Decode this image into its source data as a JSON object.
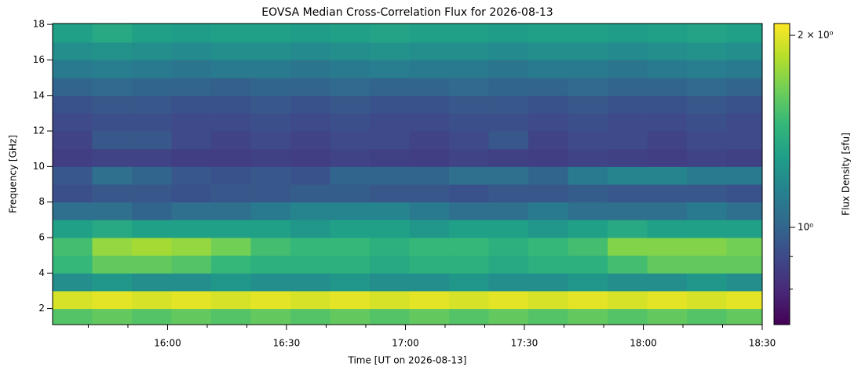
{
  "chart_data": {
    "type": "heatmap",
    "title": "EOVSA Median Cross-Correlation Flux for 2026-08-13",
    "xlabel": "Time [UT on 2026-08-13]",
    "ylabel": "Frequency [GHz]",
    "colormap": "viridis",
    "x": [
      "15:36",
      "15:46",
      "15:56",
      "16:06",
      "16:16",
      "16:26",
      "16:36",
      "16:46",
      "16:56",
      "17:06",
      "17:16",
      "17:26",
      "17:36",
      "17:46",
      "17:56",
      "18:06",
      "18:16",
      "18:26"
    ],
    "y": [
      1.5,
      2.5,
      3.5,
      4.5,
      5.5,
      6.5,
      7.5,
      8.5,
      9.5,
      10.5,
      11.5,
      12.5,
      13.5,
      14.5,
      15.5,
      16.5,
      17.5
    ],
    "xlim": [
      "15:31",
      "18:30"
    ],
    "xticks": [
      "16:00",
      "16:30",
      "17:00",
      "17:30",
      "18:00",
      "18:30"
    ],
    "xminorticks": [
      "15:40",
      "15:50",
      "16:10",
      "16:20",
      "16:40",
      "16:50",
      "17:10",
      "17:20",
      "17:40",
      "17:50",
      "18:10",
      "18:20"
    ],
    "ylim": [
      1.1,
      18.05
    ],
    "yticks": [
      2,
      4,
      6,
      8,
      10,
      12,
      14,
      16,
      18
    ],
    "values": [
      [
        1.55,
        1.6,
        1.55,
        1.6,
        1.55,
        1.6,
        1.55,
        1.6,
        1.55,
        1.6,
        1.55,
        1.6,
        1.55,
        1.6,
        1.55,
        1.6,
        1.55,
        1.6
      ],
      [
        1.95,
        2.0,
        1.95,
        2.0,
        1.95,
        2.0,
        1.95,
        2.0,
        1.95,
        2.0,
        1.95,
        2.0,
        1.95,
        2.0,
        1.95,
        2.0,
        1.95,
        2.0
      ],
      [
        1.2,
        1.25,
        1.2,
        1.2,
        1.25,
        1.2,
        1.2,
        1.25,
        1.2,
        1.2,
        1.25,
        1.2,
        1.2,
        1.25,
        1.2,
        1.2,
        1.25,
        1.2
      ],
      [
        1.45,
        1.6,
        1.6,
        1.55,
        1.45,
        1.4,
        1.4,
        1.4,
        1.35,
        1.4,
        1.4,
        1.35,
        1.4,
        1.4,
        1.5,
        1.6,
        1.6,
        1.6
      ],
      [
        1.5,
        1.75,
        1.8,
        1.75,
        1.65,
        1.5,
        1.45,
        1.45,
        1.4,
        1.45,
        1.45,
        1.4,
        1.45,
        1.5,
        1.7,
        1.7,
        1.7,
        1.65
      ],
      [
        1.3,
        1.35,
        1.3,
        1.3,
        1.3,
        1.3,
        1.25,
        1.3,
        1.3,
        1.25,
        1.3,
        1.3,
        1.25,
        1.3,
        1.35,
        1.3,
        1.3,
        1.3
      ],
      [
        1.05,
        1.05,
        1.0,
        1.05,
        1.05,
        1.1,
        1.15,
        1.15,
        1.15,
        1.1,
        1.05,
        1.05,
        1.1,
        1.05,
        1.05,
        1.05,
        1.1,
        1.05
      ],
      [
        0.92,
        0.95,
        0.95,
        0.93,
        0.95,
        0.95,
        0.97,
        0.97,
        0.95,
        0.95,
        0.93,
        0.95,
        0.95,
        0.97,
        0.95,
        0.95,
        0.95,
        0.93
      ],
      [
        0.95,
        1.05,
        1.0,
        0.95,
        0.93,
        0.95,
        0.93,
        1.0,
        1.0,
        1.0,
        1.05,
        1.05,
        1.0,
        1.1,
        1.15,
        1.15,
        1.1,
        1.1
      ],
      [
        0.86,
        0.88,
        0.88,
        0.86,
        0.86,
        0.87,
        0.86,
        0.88,
        0.87,
        0.86,
        0.88,
        0.87,
        0.86,
        0.88,
        0.87,
        0.86,
        0.88,
        0.87
      ],
      [
        0.88,
        0.95,
        0.95,
        0.9,
        0.88,
        0.9,
        0.88,
        0.9,
        0.9,
        0.88,
        0.9,
        0.95,
        0.88,
        0.9,
        0.9,
        0.88,
        0.9,
        0.9
      ],
      [
        0.9,
        0.92,
        0.92,
        0.9,
        0.9,
        0.92,
        0.9,
        0.92,
        0.9,
        0.9,
        0.92,
        0.92,
        0.9,
        0.92,
        0.9,
        0.9,
        0.92,
        0.9
      ],
      [
        0.93,
        0.95,
        0.95,
        0.93,
        0.93,
        0.95,
        0.93,
        0.95,
        0.93,
        0.93,
        0.95,
        0.95,
        0.93,
        0.95,
        0.93,
        0.93,
        0.95,
        0.93
      ],
      [
        1.0,
        1.02,
        1.0,
        1.0,
        0.98,
        1.0,
        1.0,
        1.02,
        1.0,
        1.0,
        1.02,
        1.0,
        1.0,
        1.02,
        1.0,
        1.0,
        1.02,
        1.0
      ],
      [
        1.1,
        1.12,
        1.1,
        1.08,
        1.1,
        1.1,
        1.08,
        1.1,
        1.12,
        1.1,
        1.1,
        1.08,
        1.1,
        1.1,
        1.08,
        1.1,
        1.12,
        1.1
      ],
      [
        1.2,
        1.22,
        1.2,
        1.18,
        1.2,
        1.2,
        1.18,
        1.2,
        1.22,
        1.2,
        1.2,
        1.18,
        1.2,
        1.2,
        1.18,
        1.2,
        1.22,
        1.2
      ],
      [
        1.3,
        1.35,
        1.3,
        1.28,
        1.3,
        1.3,
        1.28,
        1.3,
        1.32,
        1.3,
        1.3,
        1.28,
        1.3,
        1.3,
        1.28,
        1.3,
        1.32,
        1.3
      ]
    ],
    "colorbar": {
      "label": "Flux Density [sfu]",
      "lim": [
        0.704,
        2.087
      ],
      "ticks": [
        {
          "value": 2,
          "label": "2 × 10⁰"
        },
        {
          "value": 1,
          "label": "10⁰"
        }
      ],
      "minorticks": [
        0.8,
        0.9
      ]
    }
  }
}
